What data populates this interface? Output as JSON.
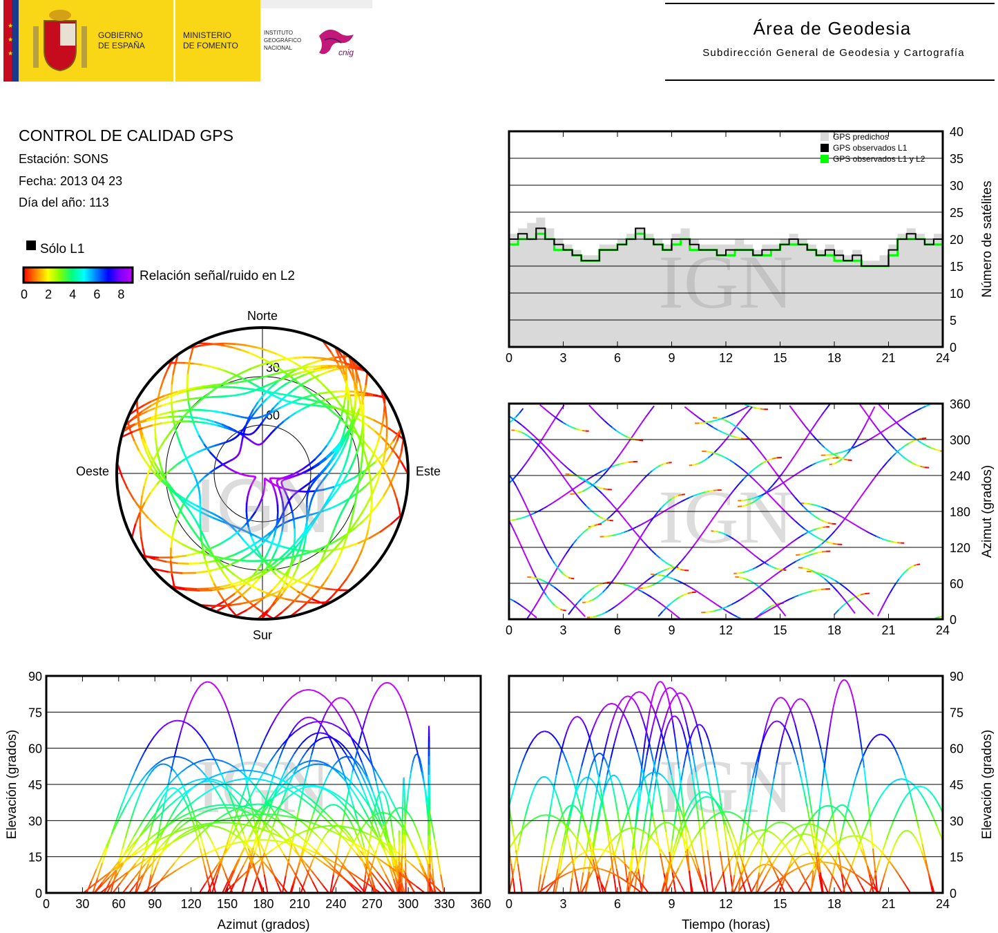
{
  "header": {
    "gov_line1": "GOBIERNO",
    "gov_line2": "DE ESPAÑA",
    "min_line1": "MINISTERIO",
    "min_line2": "DE FOMENTO",
    "ign_line1": "INSTITUTO",
    "ign_line2": "GEOGRÁFICO",
    "ign_line3": "NACIONAL",
    "cnig_logo_text": "cnig",
    "area_title": "Área de Geodesia",
    "area_subtitle": "Subdirección General de Geodesia y Cartografía"
  },
  "report": {
    "title": "CONTROL DE CALIDAD GPS",
    "station": "Estación: SONS",
    "date": "Fecha: 2013 04 23",
    "doy": "Día del año: 113",
    "legend_l1": "Sólo L1",
    "legend_snr": "Relación señal/ruido en L2",
    "colorbar_ticks": [
      "0",
      "2",
      "4",
      "6",
      "8"
    ],
    "colorbar_range": [
      0,
      9
    ],
    "colorbar_stops": [
      "#ff0000",
      "#ff8000",
      "#ffff00",
      "#80ff00",
      "#00ff80",
      "#00ffff",
      "#0080ff",
      "#0000ff",
      "#8000ff",
      "#c000ff"
    ]
  },
  "watermark": "IGN",
  "colors": {
    "l1_only": "#000000",
    "predicted": "#d9d9d9",
    "observed_l2": "#00ff00",
    "observed_l1": "#000000"
  },
  "chart_data": [
    {
      "id": "skyplot",
      "type": "scatter",
      "projection": "polar",
      "labels": {
        "north": "Norte",
        "south": "Sur",
        "east": "Este",
        "west": "Oeste"
      },
      "rings": [
        {
          "elevation": 30,
          "label": "30"
        },
        {
          "elevation": 60,
          "label": "60"
        }
      ],
      "description_series": "satellite elevation/azimuth tracks colored by L2 SNR"
    },
    {
      "id": "satellites",
      "type": "area",
      "xlim": [
        0,
        24
      ],
      "ylim": [
        0,
        40
      ],
      "xticks": [
        "0",
        "3",
        "6",
        "9",
        "12",
        "15",
        "18",
        "21",
        "24"
      ],
      "yticks": [
        "0",
        "5",
        "10",
        "15",
        "20",
        "25",
        "30",
        "35",
        "40"
      ],
      "ylabel": "Número de satélites",
      "legend": [
        "GPS predichos",
        "GPS observados L1",
        "GPS observados L1 y L2"
      ],
      "legend_position": "top-right",
      "grid": true,
      "predicted": [
        [
          0,
          21
        ],
        [
          0.5,
          22
        ],
        [
          1,
          23
        ],
        [
          1.5,
          24
        ],
        [
          2,
          22
        ],
        [
          2.5,
          20
        ],
        [
          3,
          19
        ],
        [
          3.5,
          18
        ],
        [
          4,
          17
        ],
        [
          4.5,
          17
        ],
        [
          5,
          19
        ],
        [
          5.5,
          19
        ],
        [
          6,
          20
        ],
        [
          6.5,
          21
        ],
        [
          7,
          22
        ],
        [
          7.5,
          21
        ],
        [
          8,
          20
        ],
        [
          8.5,
          19
        ],
        [
          9,
          21
        ],
        [
          9.5,
          22
        ],
        [
          10,
          20
        ],
        [
          10.5,
          19
        ],
        [
          11,
          19
        ],
        [
          11.5,
          19
        ],
        [
          12,
          19
        ],
        [
          12.5,
          20
        ],
        [
          13,
          19
        ],
        [
          13.5,
          18
        ],
        [
          14,
          19
        ],
        [
          14.5,
          19
        ],
        [
          15,
          20
        ],
        [
          15.5,
          21
        ],
        [
          16,
          20
        ],
        [
          16.5,
          19
        ],
        [
          17,
          18
        ],
        [
          17.5,
          19
        ],
        [
          18,
          18
        ],
        [
          18.5,
          17
        ],
        [
          19,
          18
        ],
        [
          19.5,
          16
        ],
        [
          20,
          16
        ],
        [
          20.5,
          17
        ],
        [
          21,
          19
        ],
        [
          21.5,
          21
        ],
        [
          22,
          22
        ],
        [
          22.5,
          21
        ],
        [
          23,
          20
        ],
        [
          23.5,
          21
        ],
        [
          24,
          19
        ]
      ],
      "observed_l1": [
        [
          0,
          20
        ],
        [
          0.5,
          21
        ],
        [
          1,
          20
        ],
        [
          1.5,
          22
        ],
        [
          2,
          20
        ],
        [
          2.5,
          19
        ],
        [
          3,
          18
        ],
        [
          3.5,
          17
        ],
        [
          4,
          16
        ],
        [
          4.5,
          16
        ],
        [
          5,
          18
        ],
        [
          5.5,
          18
        ],
        [
          6,
          19
        ],
        [
          6.5,
          20
        ],
        [
          7,
          22
        ],
        [
          7.5,
          20
        ],
        [
          8,
          19
        ],
        [
          8.5,
          18
        ],
        [
          9,
          20
        ],
        [
          9.5,
          20
        ],
        [
          10,
          19
        ],
        [
          10.5,
          18
        ],
        [
          11,
          18
        ],
        [
          11.5,
          17
        ],
        [
          12,
          18
        ],
        [
          12.5,
          18
        ],
        [
          13,
          18
        ],
        [
          13.5,
          17
        ],
        [
          14,
          18
        ],
        [
          14.5,
          18
        ],
        [
          15,
          19
        ],
        [
          15.5,
          20
        ],
        [
          16,
          19
        ],
        [
          16.5,
          18
        ],
        [
          17,
          17
        ],
        [
          17.5,
          18
        ],
        [
          18,
          17
        ],
        [
          18.5,
          16
        ],
        [
          19,
          17
        ],
        [
          19.5,
          15
        ],
        [
          20,
          15
        ],
        [
          20.5,
          15
        ],
        [
          21,
          18
        ],
        [
          21.5,
          20
        ],
        [
          22,
          21
        ],
        [
          22.5,
          20
        ],
        [
          23,
          19
        ],
        [
          23.5,
          20
        ],
        [
          24,
          18
        ]
      ],
      "observed_l2": [
        [
          0,
          19
        ],
        [
          0.5,
          20
        ],
        [
          1,
          20
        ],
        [
          1.5,
          21
        ],
        [
          2,
          20
        ],
        [
          2.5,
          18
        ],
        [
          3,
          18
        ],
        [
          3.5,
          17
        ],
        [
          4,
          16
        ],
        [
          4.5,
          16
        ],
        [
          5,
          18
        ],
        [
          5.5,
          18
        ],
        [
          6,
          19
        ],
        [
          6.5,
          20
        ],
        [
          7,
          21
        ],
        [
          7.5,
          20
        ],
        [
          8,
          19
        ],
        [
          8.5,
          18
        ],
        [
          9,
          19
        ],
        [
          9.5,
          20
        ],
        [
          10,
          18
        ],
        [
          10.5,
          18
        ],
        [
          11,
          18
        ],
        [
          11.5,
          17
        ],
        [
          12,
          17
        ],
        [
          12.5,
          18
        ],
        [
          13,
          18
        ],
        [
          13.5,
          17
        ],
        [
          14,
          17
        ],
        [
          14.5,
          18
        ],
        [
          15,
          19
        ],
        [
          15.5,
          19
        ],
        [
          16,
          19
        ],
        [
          16.5,
          18
        ],
        [
          17,
          17
        ],
        [
          17.5,
          17
        ],
        [
          18,
          16
        ],
        [
          18.5,
          16
        ],
        [
          19,
          16
        ],
        [
          19.5,
          15
        ],
        [
          20,
          15
        ],
        [
          20.5,
          15
        ],
        [
          21,
          17
        ],
        [
          21.5,
          20
        ],
        [
          22,
          20
        ],
        [
          22.5,
          20
        ],
        [
          23,
          19
        ],
        [
          23.5,
          19
        ],
        [
          24,
          18
        ]
      ]
    },
    {
      "id": "azimuth_time",
      "type": "scatter",
      "xlim": [
        0,
        24
      ],
      "ylim": [
        0,
        360
      ],
      "xticks": [
        "0",
        "3",
        "6",
        "9",
        "12",
        "15",
        "18",
        "21",
        "24"
      ],
      "yticks": [
        "0",
        "60",
        "120",
        "180",
        "240",
        "300",
        "360"
      ],
      "ylabel": "Azimut (grados)",
      "grid": true
    },
    {
      "id": "elevation_azimuth",
      "type": "scatter",
      "xlim": [
        0,
        360
      ],
      "ylim": [
        0,
        90
      ],
      "xticks": [
        "0",
        "30",
        "60",
        "90",
        "120",
        "150",
        "180",
        "210",
        "240",
        "270",
        "300",
        "330",
        "360"
      ],
      "yticks": [
        "0",
        "15",
        "30",
        "45",
        "60",
        "75",
        "90"
      ],
      "xlabel": "Azimut (grados)",
      "ylabel": "Elevación (grados)",
      "grid": true
    },
    {
      "id": "elevation_time",
      "type": "scatter",
      "xlim": [
        0,
        24
      ],
      "ylim": [
        0,
        90
      ],
      "xticks": [
        "0",
        "3",
        "6",
        "9",
        "12",
        "15",
        "18",
        "21",
        "24"
      ],
      "yticks": [
        "0",
        "15",
        "30",
        "45",
        "60",
        "75",
        "90"
      ],
      "xlabel": "Tiempo (horas)",
      "ylabel": "Elevación (grados)",
      "grid": true
    }
  ]
}
